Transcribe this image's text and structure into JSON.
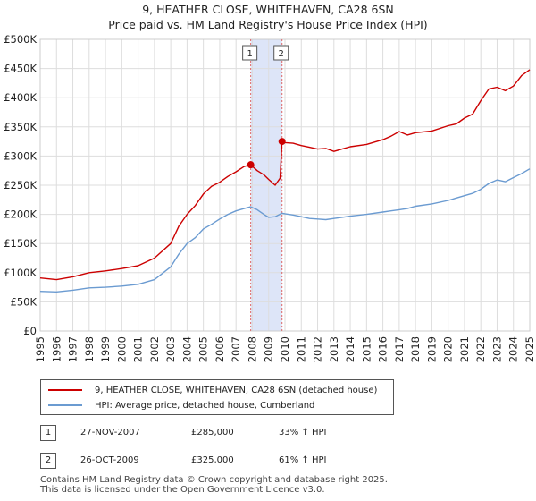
{
  "title": {
    "line1": "9, HEATHER CLOSE, WHITEHAVEN, CA28 6SN",
    "line2": "Price paid vs. HM Land Registry's House Price Index (HPI)"
  },
  "colors": {
    "property": "#cc0000",
    "hpi": "#6b9bd1",
    "shade": "#dde5f8",
    "grid": "#dddddd",
    "marker_line": "#dd6666"
  },
  "chart_data": {
    "type": "line",
    "title": "9, HEATHER CLOSE, WHITEHAVEN, CA28 6SN",
    "xlim": [
      1995,
      2025
    ],
    "ylim": [
      0,
      500000
    ],
    "x_ticks": [
      1995,
      1996,
      1997,
      1998,
      1999,
      2000,
      2001,
      2002,
      2003,
      2004,
      2005,
      2006,
      2007,
      2008,
      2009,
      2010,
      2011,
      2012,
      2013,
      2014,
      2015,
      2016,
      2017,
      2018,
      2019,
      2020,
      2021,
      2022,
      2023,
      2024,
      2025
    ],
    "y_ticks": [
      {
        "value": 0,
        "label": "£0"
      },
      {
        "value": 50000,
        "label": "£50K"
      },
      {
        "value": 100000,
        "label": "£100K"
      },
      {
        "value": 150000,
        "label": "£150K"
      },
      {
        "value": 200000,
        "label": "£200K"
      },
      {
        "value": 250000,
        "label": "£250K"
      },
      {
        "value": 300000,
        "label": "£300K"
      },
      {
        "value": 350000,
        "label": "£350K"
      },
      {
        "value": 400000,
        "label": "£400K"
      },
      {
        "value": 450000,
        "label": "£450K"
      },
      {
        "value": 500000,
        "label": "£500K"
      }
    ],
    "series": [
      {
        "name": "9, HEATHER CLOSE, WHITEHAVEN, CA28 6SN (detached house)",
        "color": "#cc0000",
        "x": [
          1995.0,
          1996.0,
          1997.0,
          1998.0,
          1999.0,
          2000.0,
          2001.0,
          2002.0,
          2003.0,
          2003.5,
          2004.0,
          2004.5,
          2005.0,
          2005.5,
          2006.0,
          2006.5,
          2007.0,
          2007.5,
          2007.9,
          2008.3,
          2008.7,
          2009.0,
          2009.4,
          2009.7,
          2009.82,
          2010.0,
          2010.5,
          2011.0,
          2011.5,
          2012.0,
          2012.5,
          2013.0,
          2013.5,
          2014.0,
          2015.0,
          2016.0,
          2016.5,
          2017.0,
          2017.5,
          2018.0,
          2019.0,
          2020.0,
          2020.5,
          2021.0,
          2021.5,
          2022.0,
          2022.5,
          2023.0,
          2023.5,
          2024.0,
          2024.5,
          2025.0
        ],
        "values": [
          91000,
          88000,
          93000,
          100000,
          103000,
          107000,
          112000,
          125000,
          150000,
          180000,
          200000,
          215000,
          235000,
          248000,
          255000,
          265000,
          273000,
          282000,
          285000,
          275000,
          268000,
          260000,
          250000,
          262000,
          325000,
          323000,
          322000,
          318000,
          315000,
          312000,
          313000,
          308000,
          312000,
          316000,
          320000,
          328000,
          334000,
          342000,
          336000,
          340000,
          343000,
          352000,
          355000,
          365000,
          372000,
          395000,
          415000,
          418000,
          412000,
          420000,
          438000,
          448000
        ]
      },
      {
        "name": "HPI: Average price, detached house, Cumberland",
        "color": "#6b9bd1",
        "x": [
          1995.0,
          1996.0,
          1997.0,
          1998.0,
          1999.0,
          2000.0,
          2001.0,
          2002.0,
          2003.0,
          2003.5,
          2004.0,
          2004.5,
          2005.0,
          2005.5,
          2006.0,
          2006.5,
          2007.0,
          2007.5,
          2007.9,
          2008.3,
          2008.7,
          2009.0,
          2009.4,
          2009.82,
          2010.0,
          2010.5,
          2011.0,
          2011.5,
          2012.0,
          2012.5,
          2013.0,
          2013.5,
          2014.0,
          2015.0,
          2016.0,
          2016.5,
          2017.0,
          2017.5,
          2018.0,
          2019.0,
          2020.0,
          2020.5,
          2021.0,
          2021.5,
          2022.0,
          2022.5,
          2023.0,
          2023.5,
          2024.0,
          2024.5,
          2025.0
        ],
        "values": [
          68000,
          67000,
          70000,
          74000,
          75000,
          77000,
          80000,
          88000,
          110000,
          132000,
          150000,
          160000,
          175000,
          183000,
          192000,
          200000,
          206000,
          210000,
          213000,
          208000,
          200000,
          195000,
          196000,
          202000,
          201000,
          199000,
          196000,
          193000,
          192000,
          191000,
          193000,
          195000,
          197000,
          200000,
          204000,
          206000,
          208000,
          210000,
          214000,
          218000,
          224000,
          228000,
          232000,
          236000,
          243000,
          253000,
          259000,
          256000,
          263000,
          270000,
          278000
        ]
      }
    ],
    "transactions": [
      {
        "id": "1",
        "x": 2007.9,
        "price": 285000
      },
      {
        "id": "2",
        "x": 2009.82,
        "price": 325000
      }
    ],
    "shaded_range": [
      2007.9,
      2009.82
    ]
  },
  "legend": {
    "property_label": "9, HEATHER CLOSE, WHITEHAVEN, CA28 6SN (detached house)",
    "hpi_label": "HPI: Average price, detached house, Cumberland"
  },
  "transactions_table": [
    {
      "badge": "1",
      "date": "27-NOV-2007",
      "price": "£285,000",
      "hpi_change": "33% ↑ HPI"
    },
    {
      "badge": "2",
      "date": "26-OCT-2009",
      "price": "£325,000",
      "hpi_change": "61% ↑ HPI"
    }
  ],
  "footer": {
    "line1": "Contains HM Land Registry data © Crown copyright and database right 2025.",
    "line2": "This data is licensed under the Open Government Licence v3.0."
  }
}
